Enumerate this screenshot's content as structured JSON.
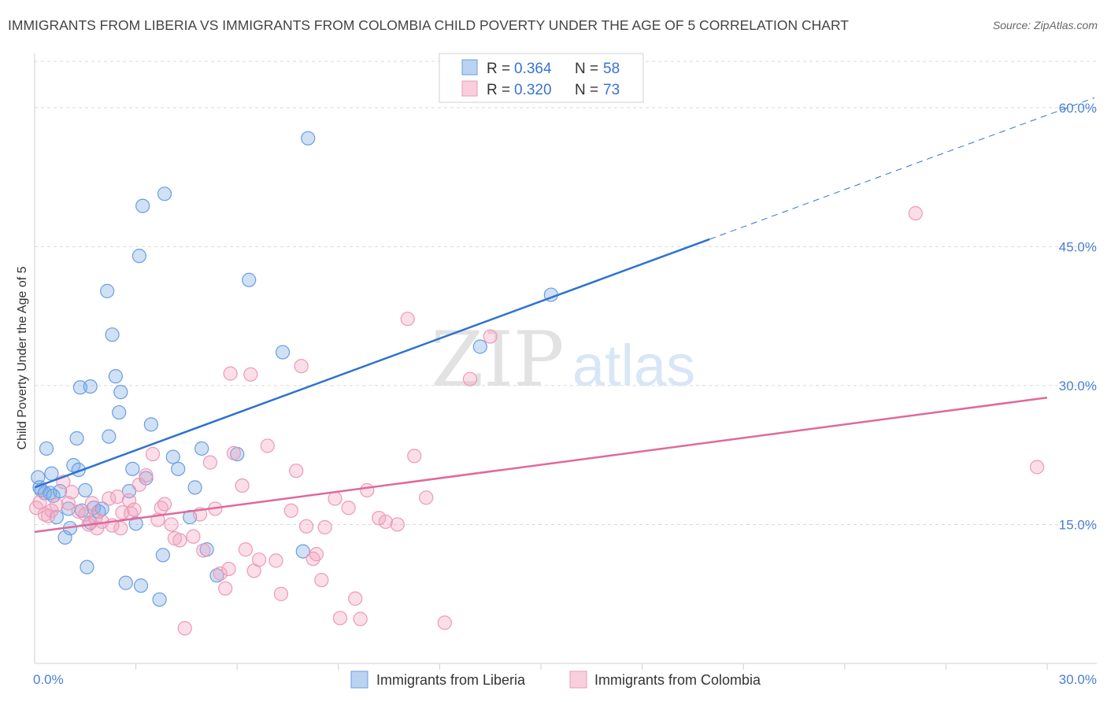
{
  "colors": {
    "liberia_fill": "rgba(120,168,230,0.35)",
    "liberia_stroke": "#6a9de0",
    "liberia_line": "#2f72d0",
    "colombia_fill": "rgba(244,160,190,0.35)",
    "colombia_stroke": "#eb9ab6",
    "colombia_line": "#e0699a",
    "grid": "#d9d9d9",
    "tick_text": "#4a7fd4"
  },
  "chart_data": {
    "type": "scatter",
    "title": "IMMIGRANTS FROM LIBERIA VS IMMIGRANTS FROM COLOMBIA CHILD POVERTY UNDER THE AGE OF 5 CORRELATION CHART",
    "source": "Source: ZipAtlas.com",
    "ylabel": "Child Poverty Under the Age of 5",
    "xlim": [
      0,
      30
    ],
    "ylim": [
      0,
      65
    ],
    "x_tick_labels": [
      "0.0%",
      "30.0%"
    ],
    "y_ticks": [
      {
        "value": 15,
        "label": "15.0%"
      },
      {
        "value": 30,
        "label": "30.0%"
      },
      {
        "value": 45,
        "label": "45.0%"
      },
      {
        "value": 60,
        "label": "60.0%"
      }
    ],
    "watermark": {
      "zip": "ZIP",
      "atlas": "atlas"
    },
    "legend": [
      {
        "r_label": "R =",
        "r_value": "0.364",
        "n_label": "N =",
        "n_value": "58"
      },
      {
        "r_label": "R =",
        "r_value": "0.320",
        "n_label": "N =",
        "n_value": "73"
      }
    ],
    "series": [
      {
        "name": "Immigrants from Liberia",
        "trend": {
          "x0": 0,
          "y0": 19.0,
          "x1": 20.0,
          "y1": 45.8,
          "dash_to_x": 30,
          "dash_to_y": 59.2
        },
        "points": [
          [
            0.1,
            20.1
          ],
          [
            0.15,
            19.0
          ],
          [
            0.2,
            18.7
          ],
          [
            0.3,
            18.4
          ],
          [
            0.35,
            23.2
          ],
          [
            0.45,
            18.4
          ],
          [
            0.5,
            20.5
          ],
          [
            0.55,
            18.1
          ],
          [
            0.65,
            15.8
          ],
          [
            0.75,
            18.6
          ],
          [
            0.9,
            13.6
          ],
          [
            1.0,
            16.7
          ],
          [
            1.05,
            14.6
          ],
          [
            1.15,
            21.4
          ],
          [
            1.25,
            24.3
          ],
          [
            1.3,
            20.9
          ],
          [
            1.4,
            16.5
          ],
          [
            1.5,
            18.7
          ],
          [
            1.55,
            10.4
          ],
          [
            1.65,
            15.2
          ],
          [
            1.75,
            16.8
          ],
          [
            1.9,
            16.4
          ],
          [
            2.0,
            16.7
          ],
          [
            1.35,
            29.8
          ],
          [
            1.65,
            29.9
          ],
          [
            2.15,
            40.2
          ],
          [
            2.2,
            24.5
          ],
          [
            2.3,
            35.5
          ],
          [
            2.4,
            31.0
          ],
          [
            2.5,
            27.1
          ],
          [
            2.55,
            29.3
          ],
          [
            2.7,
            8.7
          ],
          [
            2.8,
            18.6
          ],
          [
            2.9,
            21.0
          ],
          [
            3.0,
            15.1
          ],
          [
            3.1,
            44.0
          ],
          [
            3.15,
            8.4
          ],
          [
            3.2,
            49.4
          ],
          [
            3.3,
            20.0
          ],
          [
            3.45,
            25.8
          ],
          [
            3.7,
            6.9
          ],
          [
            3.8,
            11.7
          ],
          [
            3.85,
            50.7
          ],
          [
            4.1,
            22.3
          ],
          [
            4.25,
            21.0
          ],
          [
            4.6,
            15.8
          ],
          [
            4.75,
            19.0
          ],
          [
            4.95,
            23.2
          ],
          [
            5.1,
            12.3
          ],
          [
            5.4,
            9.5
          ],
          [
            6.0,
            22.6
          ],
          [
            6.35,
            41.4
          ],
          [
            7.35,
            33.6
          ],
          [
            7.95,
            12.1
          ],
          [
            8.1,
            56.7
          ],
          [
            13.2,
            34.2
          ],
          [
            15.3,
            39.8
          ]
        ]
      },
      {
        "name": "Immigrants from Colombia",
        "trend": {
          "x0": 0,
          "y0": 14.2,
          "x1": 30,
          "y1": 28.7
        },
        "points": [
          [
            0.05,
            16.8
          ],
          [
            0.15,
            17.4
          ],
          [
            0.3,
            16.1
          ],
          [
            0.4,
            15.9
          ],
          [
            0.5,
            16.5
          ],
          [
            0.65,
            17.1
          ],
          [
            0.85,
            19.6
          ],
          [
            1.0,
            17.3
          ],
          [
            1.1,
            18.5
          ],
          [
            1.3,
            16.4
          ],
          [
            1.5,
            16.1
          ],
          [
            1.6,
            15.0
          ],
          [
            1.7,
            17.3
          ],
          [
            1.8,
            15.7
          ],
          [
            1.85,
            14.6
          ],
          [
            2.0,
            15.3
          ],
          [
            2.2,
            17.8
          ],
          [
            2.3,
            14.9
          ],
          [
            2.45,
            18.0
          ],
          [
            2.55,
            14.6
          ],
          [
            2.6,
            16.3
          ],
          [
            2.8,
            17.6
          ],
          [
            2.85,
            16.2
          ],
          [
            2.95,
            16.6
          ],
          [
            3.1,
            19.3
          ],
          [
            3.3,
            20.3
          ],
          [
            3.5,
            22.6
          ],
          [
            3.65,
            15.5
          ],
          [
            3.75,
            16.8
          ],
          [
            3.85,
            17.2
          ],
          [
            4.05,
            15.0
          ],
          [
            4.15,
            13.5
          ],
          [
            4.3,
            13.3
          ],
          [
            4.45,
            3.8
          ],
          [
            4.7,
            13.7
          ],
          [
            4.9,
            16.1
          ],
          [
            5.0,
            12.2
          ],
          [
            5.2,
            21.7
          ],
          [
            5.35,
            16.7
          ],
          [
            5.5,
            9.7
          ],
          [
            5.65,
            8.1
          ],
          [
            5.75,
            10.2
          ],
          [
            5.8,
            31.3
          ],
          [
            5.9,
            22.7
          ],
          [
            6.15,
            19.2
          ],
          [
            6.25,
            12.3
          ],
          [
            6.4,
            31.2
          ],
          [
            6.5,
            10.0
          ],
          [
            6.65,
            11.2
          ],
          [
            6.9,
            23.5
          ],
          [
            7.15,
            11.1
          ],
          [
            7.3,
            7.5
          ],
          [
            7.6,
            16.5
          ],
          [
            7.75,
            20.8
          ],
          [
            7.9,
            32.1
          ],
          [
            8.05,
            14.8
          ],
          [
            8.25,
            11.3
          ],
          [
            8.35,
            11.8
          ],
          [
            8.5,
            9.0
          ],
          [
            8.6,
            14.7
          ],
          [
            8.9,
            17.8
          ],
          [
            9.05,
            4.9
          ],
          [
            9.3,
            16.8
          ],
          [
            9.5,
            7.0
          ],
          [
            9.65,
            4.8
          ],
          [
            9.85,
            18.7
          ],
          [
            10.2,
            15.7
          ],
          [
            10.4,
            15.3
          ],
          [
            10.75,
            15.0
          ],
          [
            11.05,
            37.2
          ],
          [
            11.25,
            22.4
          ],
          [
            11.6,
            17.9
          ],
          [
            12.15,
            4.4
          ],
          [
            12.9,
            30.7
          ],
          [
            13.5,
            35.3
          ],
          [
            26.1,
            48.6
          ],
          [
            29.7,
            21.2
          ]
        ]
      }
    ]
  },
  "bottom_legend": {
    "liberia": "Immigrants from Liberia",
    "colombia": "Immigrants from Colombia"
  }
}
